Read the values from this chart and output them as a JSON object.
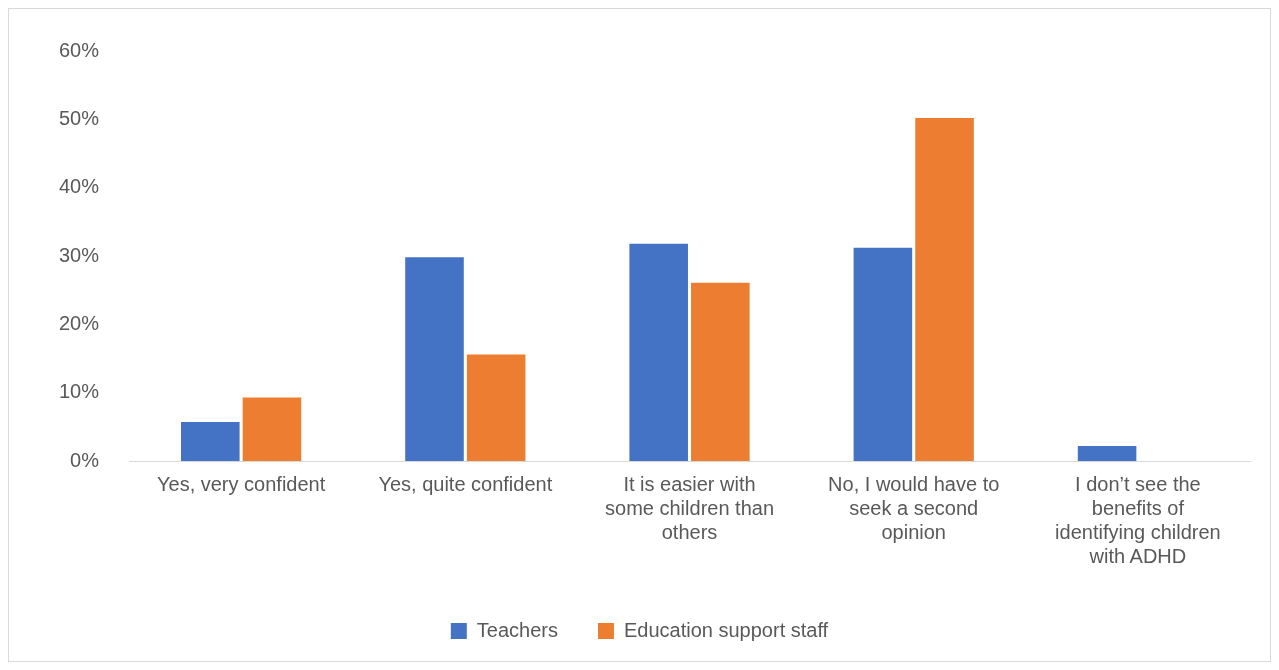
{
  "chart_data": {
    "type": "bar",
    "categories": [
      "Yes, very confident",
      "Yes, quite confident",
      "It is easier with some children than others",
      "No, I would have to seek a second opinion",
      "I don’t see the benefits of identifying children with ADHD"
    ],
    "series": [
      {
        "name": "Teachers",
        "color": "#4472c4",
        "values": [
          5.7,
          29.8,
          31.8,
          31.2,
          2.2
        ]
      },
      {
        "name": "Education support staff",
        "color": "#ed7d31",
        "values": [
          9.3,
          15.6,
          26.1,
          50.2,
          0
        ]
      }
    ],
    "ylim": [
      0,
      60
    ],
    "yticks": [
      {
        "value": 0,
        "label": "0%"
      },
      {
        "value": 10,
        "label": "10%"
      },
      {
        "value": 20,
        "label": "20%"
      },
      {
        "value": 30,
        "label": "30%"
      },
      {
        "value": 40,
        "label": "40%"
      },
      {
        "value": 50,
        "label": "50%"
      },
      {
        "value": 60,
        "label": "60%"
      }
    ],
    "grid": false,
    "legend": "bottom"
  }
}
